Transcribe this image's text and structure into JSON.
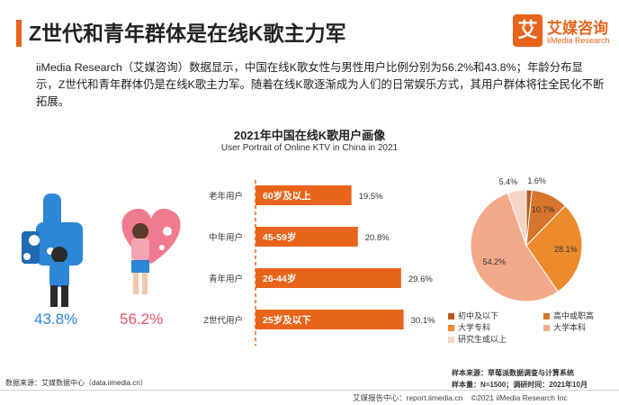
{
  "header": {
    "title": "Z世代和青年群体是在线K歌主力军",
    "logo_mark": "艾",
    "logo_cn": "艾媒咨询",
    "logo_en": "iiMedia Research"
  },
  "intro": "iiMedia Research（艾媒咨询）数据显示，中国在线K歌女性与男性用户比例分别为56.2%和43.8%；年龄分布显示，Z世代和青年群体仍是在线K歌主力军。随着在线K歌逐渐成为人们的日常娱乐方式，其用户群体将往全民化不断拓展。",
  "chart_title": "2021年中国在线K歌用户画像",
  "chart_subtitle": "User Portrait of Online KTV in China in 2021",
  "gender": {
    "male_pct": "43.8%",
    "female_pct": "56.2%"
  },
  "colors": {
    "accent": "#e8641b",
    "male": "#2d86d6",
    "female": "#e8536a",
    "bar": "#e8641b"
  },
  "chart_data": [
    {
      "type": "bar",
      "orientation": "horizontal",
      "categories": [
        "老年用户",
        "中年用户",
        "青年用户",
        "Z世代用户"
      ],
      "bar_labels": [
        "60岁及以上",
        "45-59岁",
        "26-44岁",
        "25岁及以下"
      ],
      "values": [
        19.5,
        20.8,
        29.6,
        30.1
      ],
      "value_labels": [
        "19.5%",
        "20.8%",
        "29.6%",
        "30.1%"
      ],
      "xlim": [
        0,
        32
      ]
    },
    {
      "type": "pie",
      "labels": [
        "初中及以下",
        "高中或职高",
        "大学专科",
        "大学本科",
        "研究生或以上"
      ],
      "values": [
        1.6,
        10.7,
        28.1,
        54.2,
        5.4
      ],
      "value_labels": [
        "1.6%",
        "10.7%",
        "28.1%",
        "54.2%",
        "5.4%"
      ],
      "colors": [
        "#b85a1f",
        "#d8752c",
        "#ec8a2c",
        "#f2a98a",
        "#f6d4c4"
      ],
      "legend_position": "bottom"
    }
  ],
  "footer": {
    "source": "数据来源：艾媒数据中心（data.iimedia.cn）",
    "sample_source": "样本来源：草莓派数据调查与计算系统",
    "sample_size": "样本量：N=1500；调研时间：2021年10月",
    "report_site": "艾媒报告中心：report.iimedia.cn",
    "copyright": "©2021  iiMedia Research Inc"
  }
}
